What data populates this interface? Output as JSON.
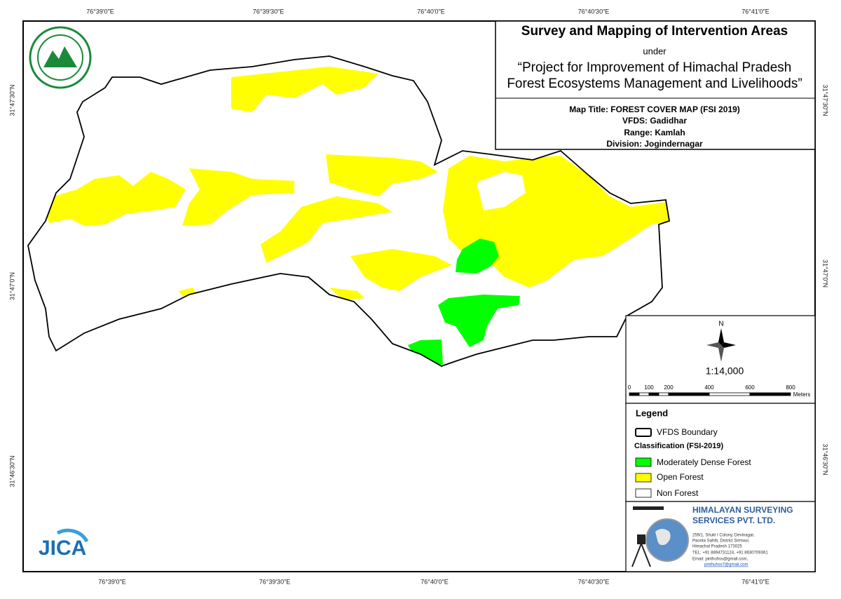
{
  "map": {
    "title": "Survey and Mapping of Intervention Areas",
    "under": "under",
    "project": [
      "“Project for Improvement of Himachal Pradesh",
      "Forest Ecosystems Management and Livelihoods”"
    ],
    "details": [
      "Map Title: FOREST COVER MAP (FSI 2019)",
      "VFDS: Gadidhar",
      "Range: Kamlah",
      "Division: Jogindernagar"
    ],
    "longitude_labels": [
      "76°39'0\"E",
      "76°39'30\"E",
      "76°40'0\"E",
      "76°40'30\"E",
      "76°41'0\"E"
    ],
    "latitude_labels": [
      "31°47'30\"N",
      "31°47'0\"N",
      "31°46'30\"N"
    ],
    "north": "N",
    "scale": "1:14,000",
    "scale_bar": {
      "labels": [
        "0",
        "100",
        "200",
        "400",
        "600",
        "800"
      ],
      "unit": "Meters"
    },
    "legend": {
      "title": "Legend",
      "boundary": "VFDS Boundary",
      "classification": "Classification (FSI-2019)",
      "items": [
        {
          "label": "Moderately Dense Forest",
          "color": "#00ff00"
        },
        {
          "label": "Open Forest",
          "color": "#ffff00"
        },
        {
          "label": "Non Forest",
          "color": "#ffffff"
        }
      ]
    },
    "company": {
      "name": [
        "HIMALAYAN SURVEYING",
        "SERVICES PVT. LTD."
      ],
      "address": [
        "259/1, Shukl I Colony, Devinagar,",
        "Paonta Sahib, District Sirmour,",
        "Himachal Pradesh 173025",
        "TEL: +91 8894731124, +91 8630709361",
        "Email: pinthuhss@gmail.com,",
        "pinthuhss7@gmail.com"
      ]
    },
    "jica": "JICA"
  }
}
